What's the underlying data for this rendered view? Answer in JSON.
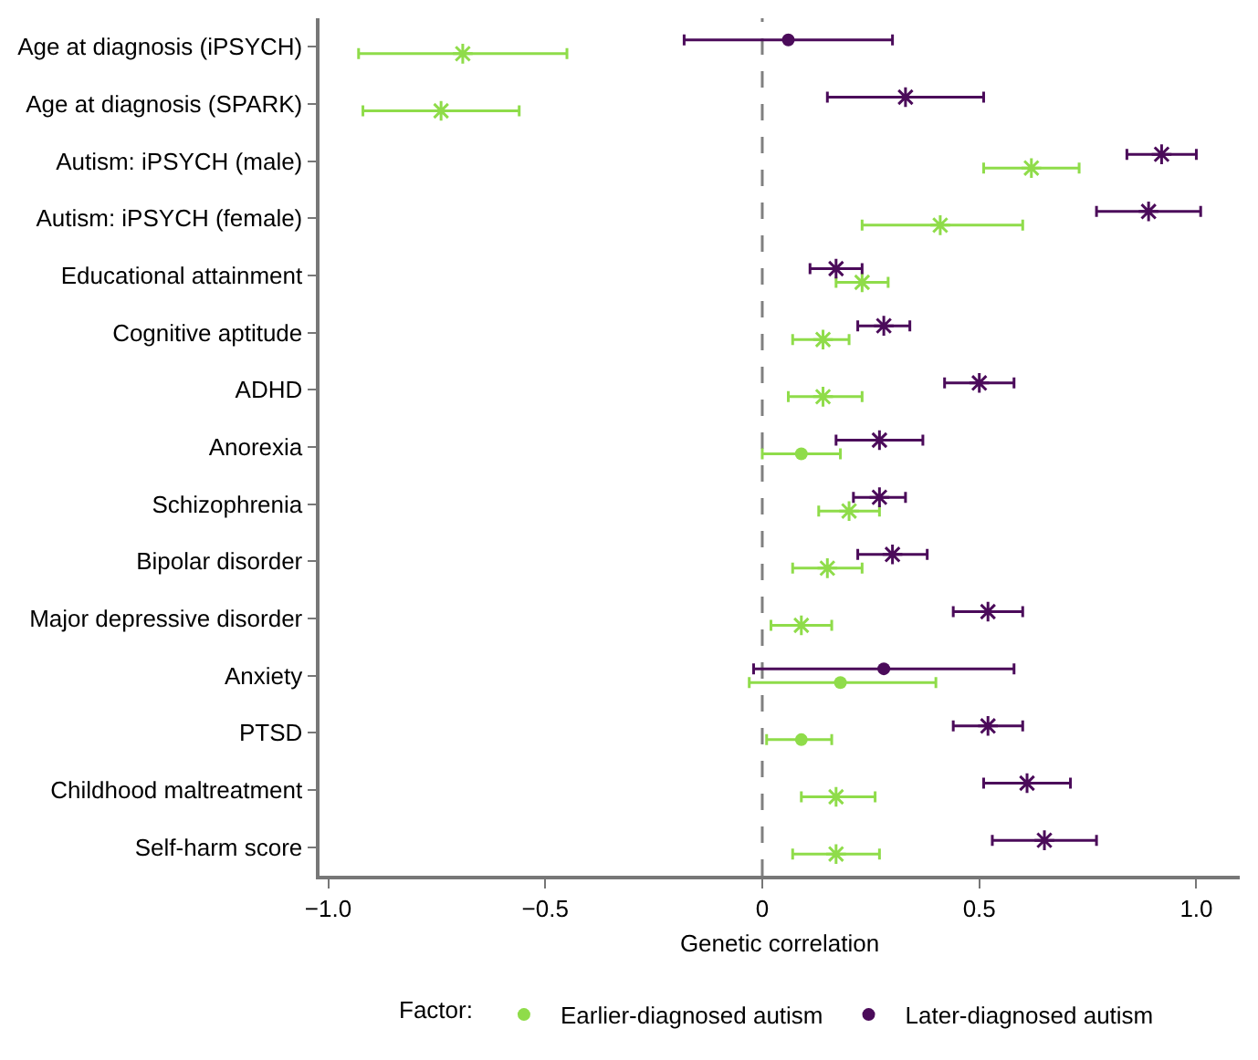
{
  "chart_data": {
    "type": "scatter",
    "orientation": "horizontal",
    "xlabel": "Genetic correlation",
    "legend_title": "Factor:",
    "legend": "bottom",
    "grid": false,
    "categories": [
      "Age at diagnosis (iPSYCH)",
      "Age at diagnosis (SPARK)",
      "Autism: iPSYCH (male)",
      "Autism: iPSYCH (female)",
      "Educational attainment",
      "Cognitive aptitude",
      "ADHD",
      "Anorexia",
      "Schizophrenia",
      "Bipolar disorder",
      "Major depressive disorder",
      "Anxiety",
      "PTSD",
      "Childhood maltreatment",
      "Self-harm score"
    ],
    "xlim": [
      -1.02,
      1.1
    ],
    "xticks": [
      {
        "value": -1,
        "label": "−1.0"
      },
      {
        "value": -0.5,
        "label": "−0.5"
      },
      0,
      0.5,
      {
        "value": 1,
        "label": "1.0"
      }
    ],
    "ref_lines": [
      {
        "axis": "x",
        "value": 0,
        "color": "#808080",
        "line_style": "dashed"
      }
    ],
    "series": [
      {
        "name": "Earlier-diagnosed autism",
        "color": "#8fdc4a",
        "marker": "circle",
        "values": [
          null,
          null,
          null,
          null,
          null,
          null,
          null,
          0.09,
          null,
          null,
          null,
          0.18,
          0.09,
          null,
          null
        ],
        "errors": [
          null,
          null,
          null,
          null,
          null,
          null,
          null,
          [
            0.0,
            0.18
          ],
          null,
          null,
          null,
          [
            -0.03,
            0.4
          ],
          [
            0.01,
            0.16
          ],
          null,
          null
        ]
      },
      {
        "color": "#8fdc4a",
        "marker": "cross",
        "values": [
          -0.69,
          -0.74,
          0.62,
          0.41,
          0.23,
          0.14,
          0.14,
          null,
          0.2,
          0.15,
          0.09,
          null,
          null,
          0.17,
          0.17
        ],
        "errors": [
          [
            -0.93,
            -0.45
          ],
          [
            -0.92,
            -0.56
          ],
          [
            0.51,
            0.73
          ],
          [
            0.23,
            0.6
          ],
          [
            0.17,
            0.29
          ],
          [
            0.07,
            0.2
          ],
          [
            0.06,
            0.23
          ],
          null,
          [
            0.13,
            0.27
          ],
          [
            0.07,
            0.23
          ],
          [
            0.02,
            0.16
          ],
          null,
          null,
          [
            0.09,
            0.26
          ],
          [
            0.07,
            0.27
          ]
        ]
      },
      {
        "name": "Later-diagnosed autism",
        "color": "#4b0b5a",
        "marker": "circle",
        "values": [
          0.06,
          null,
          null,
          null,
          null,
          null,
          null,
          null,
          null,
          null,
          null,
          0.28,
          null,
          null,
          null
        ],
        "errors": [
          [
            -0.18,
            0.3
          ],
          null,
          null,
          null,
          null,
          null,
          null,
          null,
          null,
          null,
          null,
          [
            -0.02,
            0.58
          ],
          null,
          null,
          null
        ]
      },
      {
        "color": "#4b0b5a",
        "marker": "cross",
        "values": [
          null,
          0.33,
          0.92,
          0.89,
          0.17,
          0.28,
          0.5,
          0.27,
          0.27,
          0.3,
          0.52,
          null,
          0.52,
          0.61,
          0.65
        ],
        "errors": [
          null,
          [
            0.15,
            0.51
          ],
          [
            0.84,
            1.0
          ],
          [
            0.77,
            1.01
          ],
          [
            0.11,
            0.23
          ],
          [
            0.22,
            0.34
          ],
          [
            0.42,
            0.58
          ],
          [
            0.17,
            0.37
          ],
          [
            0.21,
            0.33
          ],
          [
            0.22,
            0.38
          ],
          [
            0.44,
            0.6
          ],
          null,
          [
            0.44,
            0.6
          ],
          [
            0.51,
            0.71
          ],
          [
            0.53,
            0.77
          ]
        ]
      }
    ]
  }
}
